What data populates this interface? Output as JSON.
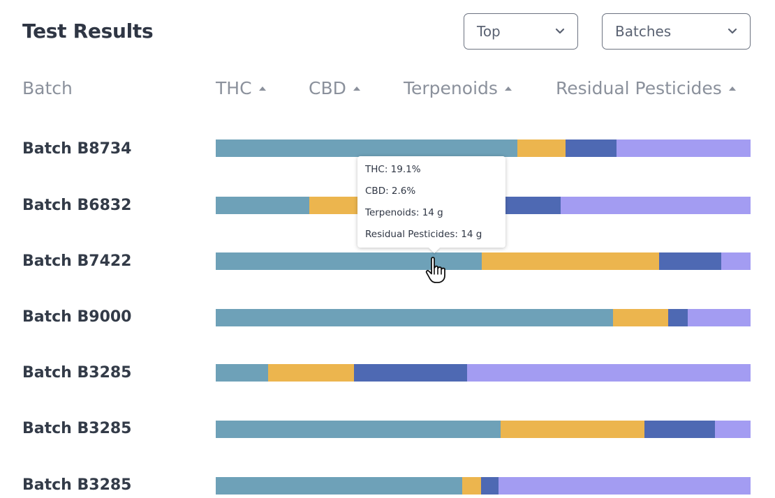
{
  "header": {
    "title": "Test Results",
    "filter_top": "Top",
    "filter_batches": "Batches"
  },
  "columns": {
    "batch": "Batch",
    "thc": "THC",
    "cbd": "CBD",
    "terpenoids": "Terpenoids",
    "residual_pesticides": "Residual Pesticides"
  },
  "colors": {
    "thc": "#6ea1b8",
    "cbd": "#ecb54e",
    "terpenoids": "#4e69b3",
    "residual_pesticides": "#a39cf2"
  },
  "rows": [
    {
      "label": "Batch B8734",
      "thc": 56.4,
      "cbd": 9.0,
      "terpenoids": 9.6,
      "residual_pesticides": 25.0
    },
    {
      "label": "Batch B6832",
      "thc": 17.5,
      "cbd": 16.0,
      "terpenoids": 31.0,
      "residual_pesticides": 35.5
    },
    {
      "label": "Batch B7422",
      "thc": 49.7,
      "cbd": 33.2,
      "terpenoids": 11.6,
      "residual_pesticides": 5.5
    },
    {
      "label": "Batch B9000",
      "thc": 74.3,
      "cbd": 10.3,
      "terpenoids": 3.6,
      "residual_pesticides": 11.8
    },
    {
      "label": "Batch B3285",
      "thc": 9.8,
      "cbd": 16.1,
      "terpenoids": 21.1,
      "residual_pesticides": 53.0
    },
    {
      "label": "Batch B3285",
      "thc": 53.3,
      "cbd": 26.8,
      "terpenoids": 13.3,
      "residual_pesticides": 6.6
    },
    {
      "label": "Batch B3285",
      "thc": 46.1,
      "cbd": 3.5,
      "terpenoids": 3.3,
      "residual_pesticides": 47.1
    }
  ],
  "tooltip": {
    "thc": "THC: 19.1%",
    "cbd": "CBD: 2.6%",
    "terpenoids": "Terpenoids: 14 g",
    "residual_pesticides": "Residual Pesticides: 14 g"
  },
  "icons": {
    "dropdown": "chevron-down-icon",
    "sort": "sort-up-icon",
    "cursor": "hand-pointer-icon"
  }
}
